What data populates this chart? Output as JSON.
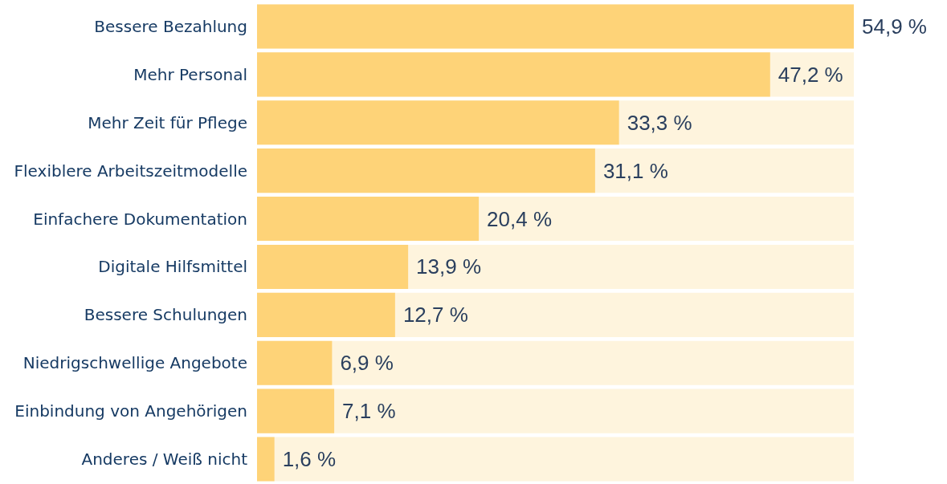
{
  "chart_data": {
    "type": "bar",
    "orientation": "horizontal",
    "categories": [
      "Bessere Bezahlung",
      "Mehr Personal",
      "Mehr Zeit für Pflege",
      "Flexiblere Arbeitszeitmodelle",
      "Einfachere Dokumentation",
      "Digitale Hilfsmittel",
      "Bessere Schulungen",
      "Niedrigschwellige Angebote",
      "Einbindung von Angehörigen",
      "Anderes / Weiß nicht"
    ],
    "values": [
      54.9,
      47.2,
      33.3,
      31.1,
      20.4,
      13.9,
      12.7,
      6.9,
      7.1,
      1.6
    ],
    "value_labels": [
      "54,9 %",
      "47,2 %",
      "33,3 %",
      "31,1 %",
      "20,4 %",
      "13,9 %",
      "12,7 %",
      "6,9 %",
      "7,1 %",
      "1,6 %"
    ],
    "color": "#fed378"
  }
}
